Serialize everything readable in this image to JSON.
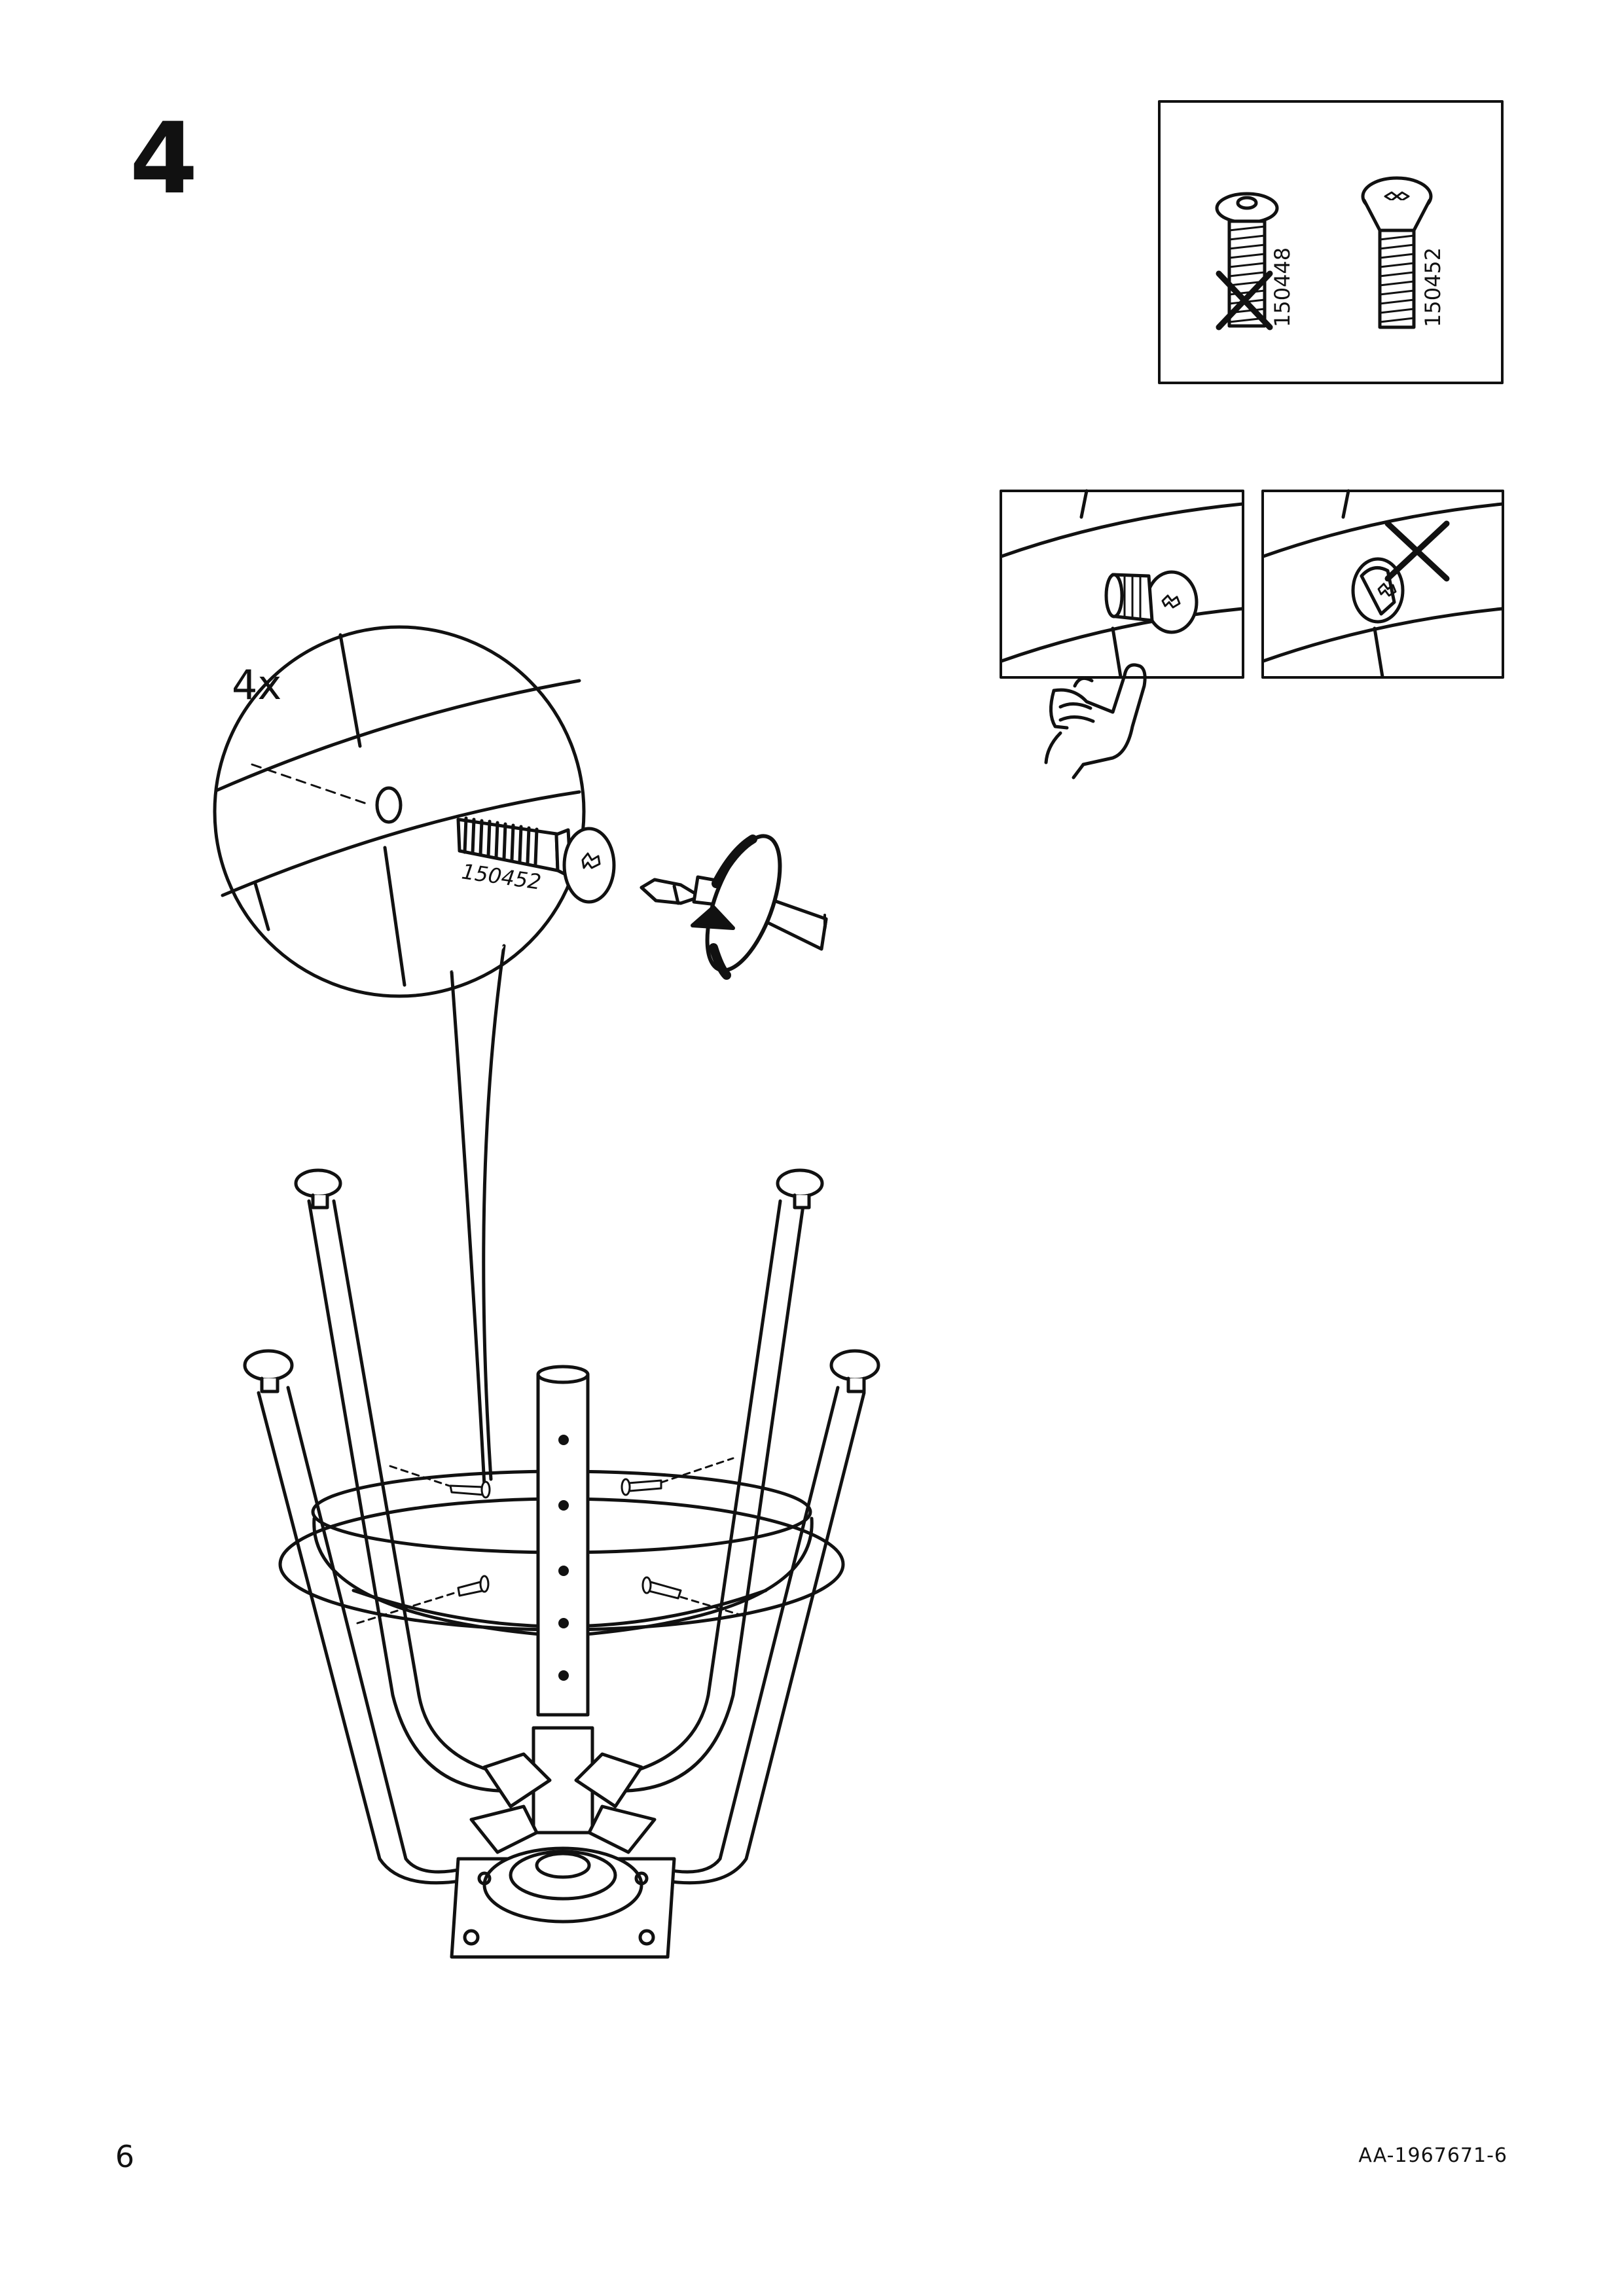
{
  "step": {
    "number": "4"
  },
  "screws": {
    "wrong": {
      "code": "150448"
    },
    "right": {
      "code": "150452"
    }
  },
  "detail": {
    "quantity": "4x",
    "screw_code": "150452"
  },
  "footer": {
    "page_number": "6",
    "doc_id": "AA-1967671-6"
  },
  "icons": [
    "cross-mark-icon",
    "screwdriver-icon",
    "rotate-clockwise-icon",
    "pointing-hand-icon"
  ]
}
